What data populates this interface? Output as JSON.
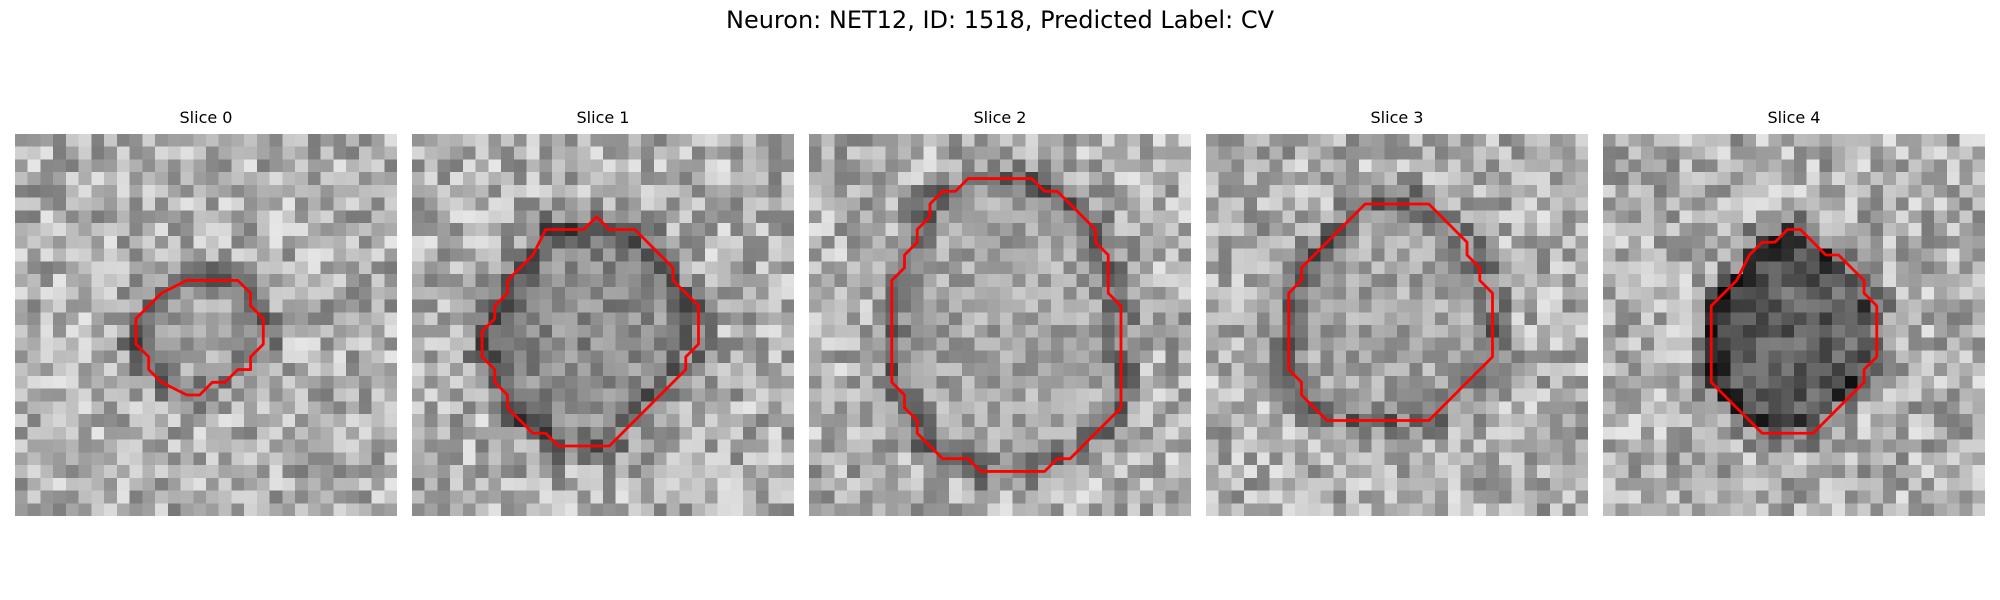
{
  "figure": {
    "title": "Neuron: NET12, ID: 1518, Predicted Label: CV"
  },
  "panels": [
    {
      "title": "Slice 0",
      "contour": [
        [
          13.5,
          11.5
        ],
        [
          17.5,
          11.5
        ],
        [
          18.5,
          12.5
        ],
        [
          18.5,
          13.5
        ],
        [
          19.5,
          14.5
        ],
        [
          19.5,
          16.5
        ],
        [
          18.5,
          17.5
        ],
        [
          18.5,
          18.5
        ],
        [
          17.5,
          18.5
        ],
        [
          16.5,
          19.5
        ],
        [
          15.5,
          19.5
        ],
        [
          14.5,
          20.5
        ],
        [
          13.5,
          20.5
        ],
        [
          11.5,
          19.5
        ],
        [
          10.5,
          18.5
        ],
        [
          10.5,
          17.5
        ],
        [
          9.5,
          16.5
        ],
        [
          9.5,
          14.5
        ],
        [
          10.5,
          13.5
        ],
        [
          11.5,
          12.5
        ]
      ],
      "interior": "bright",
      "seed": 11
    },
    {
      "title": "Slice 1",
      "contour": [
        [
          10.5,
          7.5
        ],
        [
          13.5,
          7.5
        ],
        [
          14.5,
          6.5
        ],
        [
          15.5,
          7.5
        ],
        [
          17.5,
          7.5
        ],
        [
          18.5,
          8.5
        ],
        [
          19.5,
          9.5
        ],
        [
          20.5,
          10.5
        ],
        [
          20.5,
          11.5
        ],
        [
          21.5,
          12.5
        ],
        [
          22.5,
          13.5
        ],
        [
          22.5,
          16.5
        ],
        [
          21.5,
          17.5
        ],
        [
          21.5,
          18.5
        ],
        [
          20.5,
          19.5
        ],
        [
          19.5,
          20.5
        ],
        [
          18.5,
          21.5
        ],
        [
          17.5,
          22.5
        ],
        [
          16.5,
          23.5
        ],
        [
          15.5,
          24.5
        ],
        [
          11.5,
          24.5
        ],
        [
          10.5,
          23.5
        ],
        [
          9.5,
          23.5
        ],
        [
          8.5,
          22.5
        ],
        [
          7.5,
          21.5
        ],
        [
          7.5,
          20.5
        ],
        [
          6.5,
          19.5
        ],
        [
          6.5,
          18.5
        ],
        [
          5.5,
          17.5
        ],
        [
          5.5,
          15.5
        ],
        [
          6.5,
          14.5
        ],
        [
          6.5,
          13.5
        ],
        [
          7.5,
          12.5
        ],
        [
          7.5,
          11.5
        ],
        [
          8.5,
          10.5
        ],
        [
          9.5,
          9.5
        ]
      ],
      "interior": "mid",
      "seed": 23
    },
    {
      "title": "Slice 2",
      "contour": [
        [
          9.5,
          5.5
        ],
        [
          10.5,
          4.5
        ],
        [
          11.5,
          4.5
        ],
        [
          12.5,
          3.5
        ],
        [
          17.5,
          3.5
        ],
        [
          18.5,
          4.5
        ],
        [
          19.5,
          4.5
        ],
        [
          20.5,
          5.5
        ],
        [
          21.5,
          6.5
        ],
        [
          22.5,
          7.5
        ],
        [
          22.5,
          8.5
        ],
        [
          23.5,
          9.5
        ],
        [
          23.5,
          12.5
        ],
        [
          24.5,
          13.5
        ],
        [
          24.5,
          21.5
        ],
        [
          23.5,
          22.5
        ],
        [
          22.5,
          23.5
        ],
        [
          21.5,
          24.5
        ],
        [
          20.5,
          25.5
        ],
        [
          19.5,
          25.5
        ],
        [
          18.5,
          26.5
        ],
        [
          13.5,
          26.5
        ],
        [
          12.5,
          25.5
        ],
        [
          10.5,
          25.5
        ],
        [
          9.5,
          24.5
        ],
        [
          8.5,
          23.5
        ],
        [
          8.5,
          22.5
        ],
        [
          7.5,
          21.5
        ],
        [
          7.5,
          20.5
        ],
        [
          6.5,
          19.5
        ],
        [
          6.5,
          11.5
        ],
        [
          7.5,
          10.5
        ],
        [
          7.5,
          9.5
        ],
        [
          8.5,
          8.5
        ],
        [
          8.5,
          7.5
        ],
        [
          9.5,
          6.5
        ]
      ],
      "interior": "bright",
      "seed": 37
    },
    {
      "title": "Slice 3",
      "contour": [
        [
          11.5,
          6.5
        ],
        [
          12.5,
          5.5
        ],
        [
          17.5,
          5.5
        ],
        [
          18.5,
          6.5
        ],
        [
          19.5,
          7.5
        ],
        [
          20.5,
          8.5
        ],
        [
          20.5,
          9.5
        ],
        [
          21.5,
          10.5
        ],
        [
          21.5,
          11.5
        ],
        [
          22.5,
          12.5
        ],
        [
          22.5,
          17.5
        ],
        [
          21.5,
          18.5
        ],
        [
          20.5,
          19.5
        ],
        [
          19.5,
          20.5
        ],
        [
          18.5,
          21.5
        ],
        [
          17.5,
          22.5
        ],
        [
          9.5,
          22.5
        ],
        [
          8.5,
          21.5
        ],
        [
          7.5,
          20.5
        ],
        [
          7.5,
          19.5
        ],
        [
          6.5,
          18.5
        ],
        [
          6.5,
          12.5
        ],
        [
          7.5,
          11.5
        ],
        [
          7.5,
          10.5
        ],
        [
          8.5,
          9.5
        ],
        [
          9.5,
          8.5
        ],
        [
          10.5,
          7.5
        ]
      ],
      "interior": "bright",
      "seed": 53
    },
    {
      "title": "Slice 4",
      "contour": [
        [
          11.5,
          9.5
        ],
        [
          12.5,
          8.5
        ],
        [
          13.5,
          8.5
        ],
        [
          14.5,
          7.5
        ],
        [
          15.5,
          7.5
        ],
        [
          16.5,
          8.5
        ],
        [
          17.5,
          9.5
        ],
        [
          18.5,
          9.5
        ],
        [
          19.5,
          10.5
        ],
        [
          20.5,
          11.5
        ],
        [
          20.5,
          12.5
        ],
        [
          21.5,
          13.5
        ],
        [
          21.5,
          17.5
        ],
        [
          20.5,
          18.5
        ],
        [
          20.5,
          19.5
        ],
        [
          19.5,
          20.5
        ],
        [
          18.5,
          21.5
        ],
        [
          17.5,
          22.5
        ],
        [
          16.5,
          23.5
        ],
        [
          12.5,
          23.5
        ],
        [
          11.5,
          22.5
        ],
        [
          10.5,
          21.5
        ],
        [
          9.5,
          20.5
        ],
        [
          8.5,
          19.5
        ],
        [
          8.5,
          13.5
        ],
        [
          9.5,
          12.5
        ],
        [
          10.5,
          11.5
        ]
      ],
      "interior": "dark",
      "seed": 71
    }
  ],
  "colors": {
    "outline": "#ff0000",
    "background": "#ffffff"
  }
}
